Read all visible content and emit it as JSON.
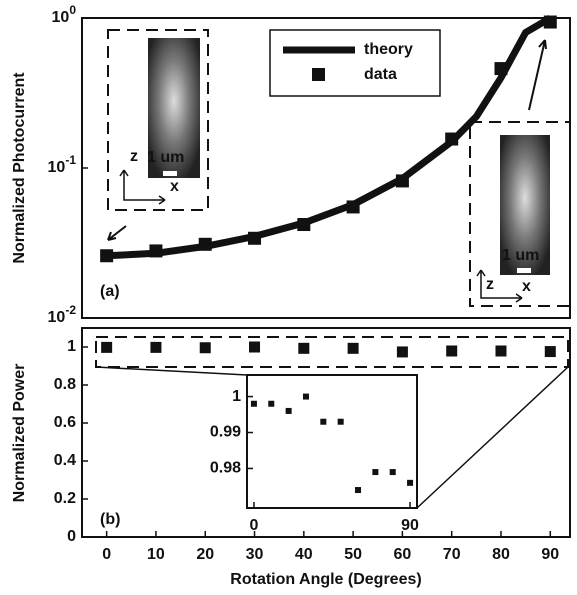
{
  "chart_data": [
    {
      "type": "line",
      "ylabel": "Normalized Photocurrent",
      "annotation": "(a)",
      "log_y": true,
      "xlim": [
        -5,
        94
      ],
      "ylim": [
        0.01,
        1
      ],
      "yticks": [
        {
          "value": 1,
          "label": "10^0"
        },
        {
          "value": 0.1,
          "label": "10^-1"
        },
        {
          "value": 0.01,
          "label": "10^-2"
        }
      ],
      "legend": "top",
      "series": [
        {
          "name": "theory",
          "kind": "line",
          "color": "#111111",
          "x": [
            0,
            10,
            20,
            30,
            40,
            50,
            60,
            70,
            75,
            80,
            85,
            90
          ],
          "values": [
            0.026,
            0.027,
            0.03,
            0.035,
            0.043,
            0.057,
            0.085,
            0.15,
            0.22,
            0.4,
            0.8,
            1.0
          ]
        },
        {
          "name": "data",
          "kind": "marker",
          "color": "#111111",
          "x": [
            0,
            10,
            20,
            30,
            40,
            50,
            60,
            70,
            80,
            90
          ],
          "values": [
            0.026,
            0.028,
            0.031,
            0.034,
            0.042,
            0.055,
            0.082,
            0.156,
            0.46,
            0.94
          ]
        }
      ],
      "insets": [
        {
          "z_label": "z",
          "x_label": "x",
          "scale_label": "1 um"
        },
        {
          "z_label": "z",
          "x_label": "x",
          "scale_label": "1 um"
        }
      ]
    },
    {
      "type": "scatter",
      "ylabel": "Normalized Power",
      "xlabel": "Rotation Angle (Degrees)",
      "annotation": "(b)",
      "xlim": [
        -5,
        94
      ],
      "ylim": [
        0,
        1.1
      ],
      "xticks": [
        0,
        10,
        20,
        30,
        40,
        50,
        60,
        70,
        80,
        90
      ],
      "yticks": [
        0,
        0.2,
        0.4,
        0.6,
        0.8,
        1
      ],
      "color": "#111111",
      "x": [
        0,
        10,
        20,
        30,
        40,
        50,
        60,
        70,
        80,
        90
      ],
      "values": [
        0.998,
        0.998,
        0.996,
        1.0,
        0.993,
        0.993,
        0.974,
        0.979,
        0.979,
        0.976
      ]
    },
    {
      "type": "scatter",
      "xlim": [
        -4,
        94
      ],
      "ylim": [
        0.969,
        1.006
      ],
      "xticks": [
        0,
        90
      ],
      "yticks": [
        0.98,
        0.99,
        1
      ],
      "color": "#111111",
      "x": [
        0,
        10,
        20,
        30,
        40,
        50,
        60,
        70,
        80,
        90
      ],
      "values": [
        0.998,
        0.998,
        0.996,
        1.0,
        0.993,
        0.993,
        0.974,
        0.979,
        0.979,
        0.976
      ]
    }
  ]
}
